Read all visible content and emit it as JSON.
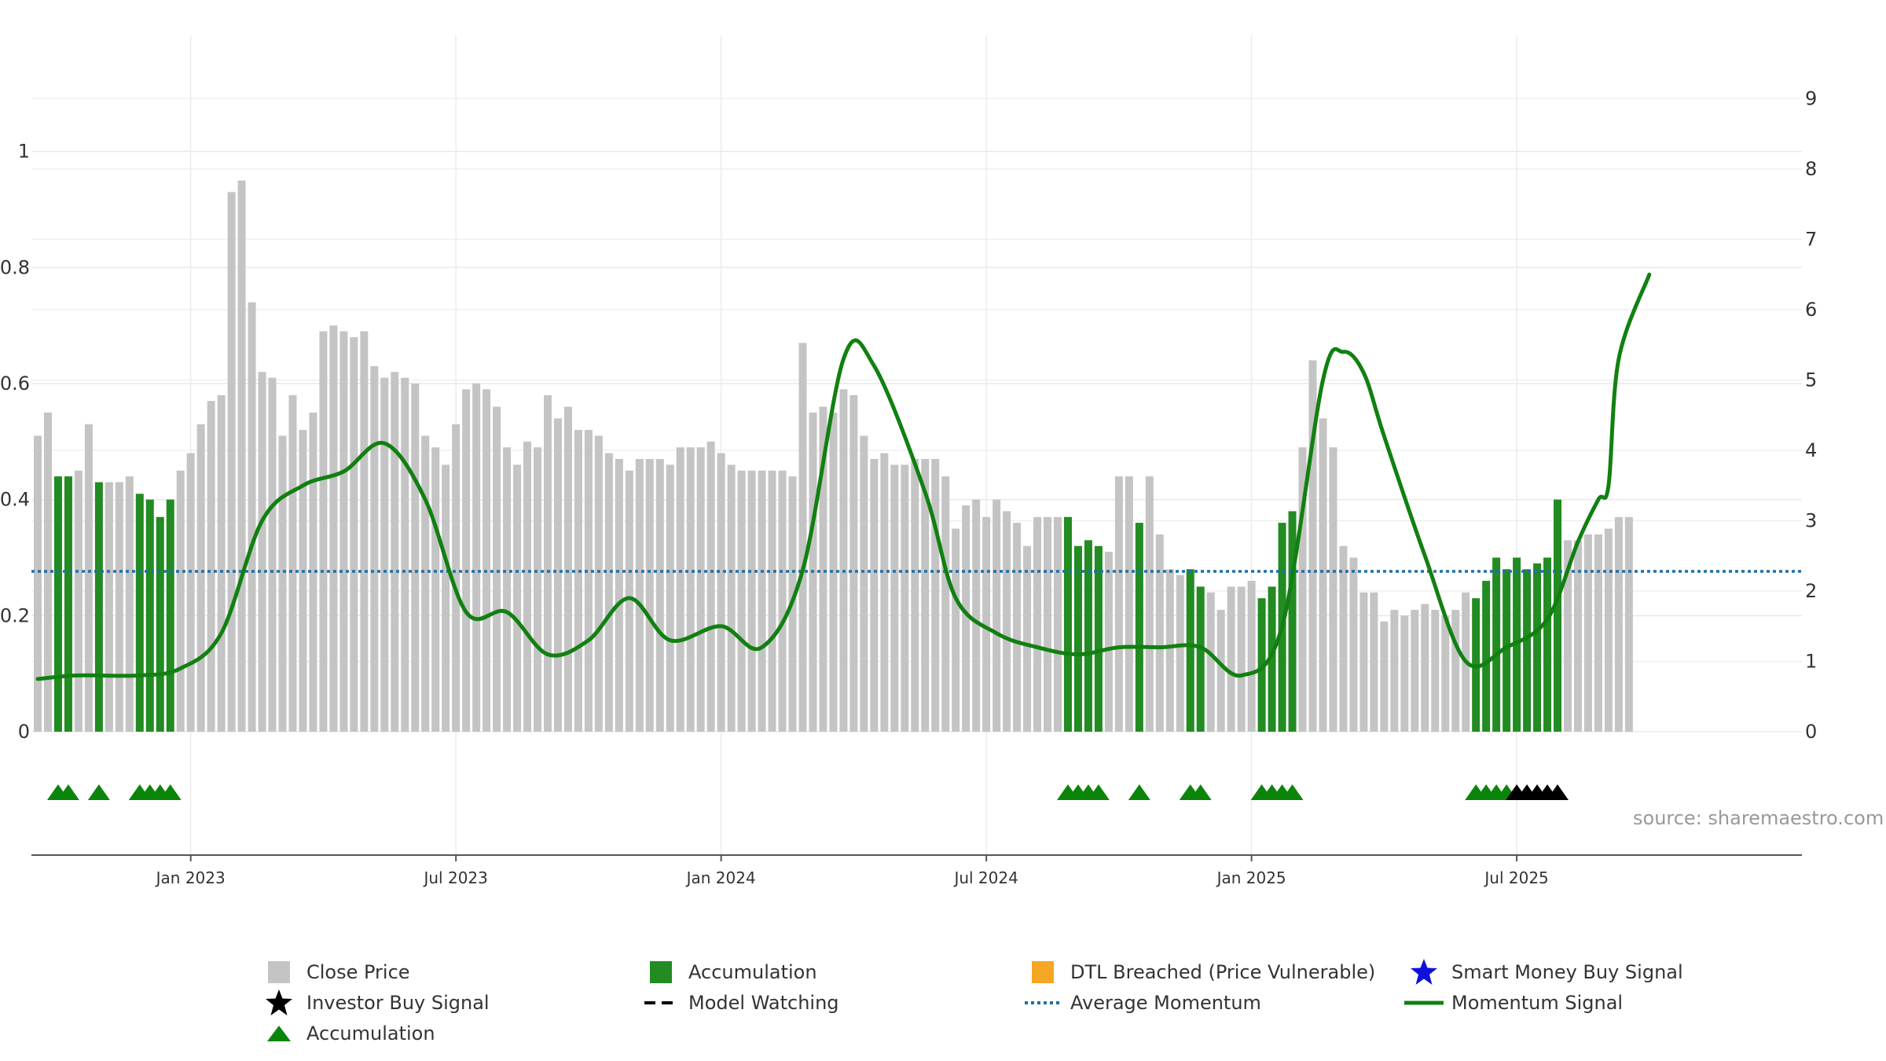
{
  "chart_data": {
    "type": "bar",
    "title": "",
    "xlabel": "",
    "ylabel": "",
    "y_left": {
      "range": [
        0,
        1.2
      ],
      "ticks": [
        0,
        0.2,
        0.4,
        0.6,
        0.8,
        1
      ],
      "tick_labels": [
        "0",
        "0.2",
        "0.4",
        "0.6",
        "0.8",
        "1"
      ]
    },
    "y_right": {
      "range": [
        0,
        9.9
      ],
      "ticks": [
        0,
        1,
        2,
        3,
        4,
        5,
        6,
        7,
        8,
        9
      ],
      "tick_labels": [
        "0",
        "1",
        "2",
        "3",
        "4",
        "5",
        "6",
        "7",
        "8",
        "9"
      ]
    },
    "x_ticks": [
      {
        "week": 15,
        "label": "Jan 2023"
      },
      {
        "week": 41,
        "label": "Jul 2023"
      },
      {
        "week": 67,
        "label": "Jan 2024"
      },
      {
        "week": 93,
        "label": "Jul 2024"
      },
      {
        "week": 119,
        "label": "Jan 2025"
      },
      {
        "week": 145,
        "label": "Jul 2025"
      }
    ],
    "grid": true,
    "legend_placement": "bottom",
    "close_price": [
      0.51,
      0.55,
      0.44,
      0.44,
      0.45,
      0.53,
      0.43,
      0.43,
      0.43,
      0.44,
      0.41,
      0.4,
      0.37,
      0.4,
      0.45,
      0.48,
      0.53,
      0.57,
      0.58,
      0.93,
      0.95,
      0.74,
      0.62,
      0.61,
      0.51,
      0.58,
      0.52,
      0.55,
      0.69,
      0.7,
      0.69,
      0.68,
      0.69,
      0.63,
      0.61,
      0.62,
      0.61,
      0.6,
      0.51,
      0.49,
      0.46,
      0.53,
      0.59,
      0.6,
      0.59,
      0.56,
      0.49,
      0.46,
      0.5,
      0.49,
      0.58,
      0.54,
      0.56,
      0.52,
      0.52,
      0.51,
      0.48,
      0.47,
      0.45,
      0.47,
      0.47,
      0.47,
      0.46,
      0.49,
      0.49,
      0.49,
      0.5,
      0.48,
      0.46,
      0.45,
      0.45,
      0.45,
      0.45,
      0.45,
      0.44,
      0.67,
      0.55,
      0.56,
      0.55,
      0.59,
      0.58,
      0.51,
      0.47,
      0.48,
      0.46,
      0.46,
      0.47,
      0.47,
      0.47,
      0.44,
      0.35,
      0.39,
      0.4,
      0.37,
      0.4,
      0.38,
      0.36,
      0.32,
      0.37,
      0.37,
      0.37,
      0.37,
      0.32,
      0.33,
      0.32,
      0.31,
      0.44,
      0.44,
      0.36,
      0.44,
      0.34,
      0.28,
      0.27,
      0.28,
      0.25,
      0.24,
      0.21,
      0.25,
      0.25,
      0.26,
      0.23,
      0.25,
      0.36,
      0.38,
      0.49,
      0.64,
      0.54,
      0.49,
      0.32,
      0.3,
      0.24,
      0.24,
      0.19,
      0.21,
      0.2,
      0.21,
      0.22,
      0.21,
      0.2,
      0.21,
      0.24,
      0.23,
      0.26,
      0.3,
      0.28,
      0.3,
      0.28,
      0.29,
      0.3,
      0.4,
      0.33,
      0.33,
      0.34,
      0.34,
      0.35,
      0.37,
      0.37
    ],
    "accumulation_bars": [
      2,
      3,
      6,
      10,
      11,
      12,
      13,
      101,
      102,
      103,
      104,
      108,
      113,
      114,
      120,
      121,
      122,
      123,
      141,
      142,
      143,
      144,
      145,
      146,
      147,
      148,
      149
    ],
    "momentum_signal": {
      "weeks": [
        0,
        4,
        10,
        14,
        18,
        22,
        26,
        30,
        34,
        38,
        42,
        46,
        50,
        54,
        58,
        62,
        67,
        71,
        75,
        79,
        82,
        87,
        90,
        94,
        98,
        102,
        106,
        110,
        114,
        118,
        122,
        126,
        128,
        130,
        132,
        136,
        140,
        144,
        148,
        151,
        153,
        154,
        155,
        158
      ],
      "values": [
        0.75,
        0.8,
        0.8,
        0.9,
        1.4,
        3.0,
        3.5,
        3.7,
        4.1,
        3.3,
        1.7,
        1.7,
        1.1,
        1.3,
        1.9,
        1.3,
        1.5,
        1.2,
        2.3,
        5.3,
        5.2,
        3.4,
        1.9,
        1.4,
        1.2,
        1.1,
        1.2,
        1.2,
        1.2,
        0.8,
        1.5,
        5.0,
        5.4,
        5.1,
        4.2,
        2.5,
        1.0,
        1.2,
        1.6,
        2.7,
        3.3,
        3.5,
        5.3,
        6.5
      ]
    },
    "average_momentum": 2.28,
    "accumulation_markers": [
      2,
      3,
      6,
      10,
      11,
      12,
      13,
      101,
      102,
      103,
      104,
      108,
      113,
      114,
      120,
      121,
      122,
      123,
      141,
      142,
      143,
      144
    ],
    "investor_buy_markers": [
      145,
      146,
      147,
      148,
      149
    ]
  },
  "legend": {
    "close_price": "Close Price",
    "accumulation_bar": "Accumulation",
    "dtl_breached": "DTL Breached (Price Vulnerable)",
    "smart_money": "Smart Money Buy Signal",
    "investor_buy": "Investor Buy Signal",
    "model_watching": "Model Watching",
    "average_momentum": "Average Momentum",
    "momentum_signal": "Momentum Signal",
    "accumulation_marker": "Accumulation"
  },
  "source": "source: sharemaestro.com",
  "colors": {
    "close_price": "#c4c4c4",
    "accumulation": "#228b22",
    "momentum": "#118011",
    "average_momentum": "#1f6fa8",
    "dtl": "#f5a623",
    "smart_money": "#1010dd",
    "investor_buy": "#000000",
    "marker_green": "#0a850a"
  }
}
